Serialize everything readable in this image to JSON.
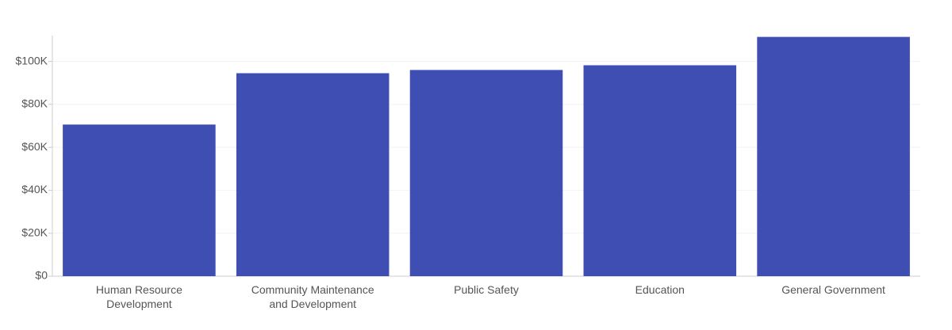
{
  "chart_data": {
    "type": "bar",
    "categories": [
      "Human Resource Development",
      "Community Maintenance and Development",
      "Public Safety",
      "Education",
      "General Government"
    ],
    "values": [
      70600,
      94500,
      96000,
      98200,
      111400
    ],
    "color": "#3f4eb3",
    "ylim": [
      0,
      112000
    ],
    "yticks": [
      {
        "value": 0,
        "label": "$0"
      },
      {
        "value": 20000,
        "label": "$20K"
      },
      {
        "value": 40000,
        "label": "$40K"
      },
      {
        "value": 60000,
        "label": "$60K"
      },
      {
        "value": 80000,
        "label": "$80K"
      },
      {
        "value": 100000,
        "label": "$100K"
      }
    ],
    "grid": true
  }
}
